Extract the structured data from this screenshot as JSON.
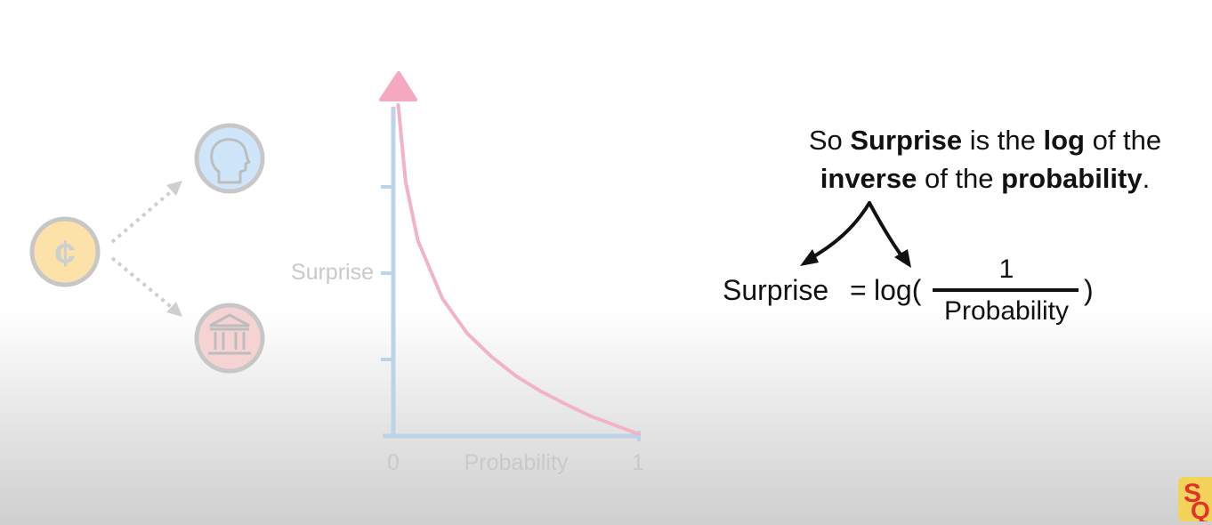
{
  "flow": {
    "source_icon": "cent-sign-icon",
    "source_glyph": "¢",
    "targets": [
      "person-head-icon",
      "bank-building-icon"
    ],
    "colors": {
      "source": "#fce2a8",
      "person": "#cfe6fa",
      "bank": "#f6d3d3",
      "ring": "#c7c7c7"
    }
  },
  "chart_data": {
    "type": "line",
    "xlabel": "Probability",
    "ylabel": "Surprise",
    "x_ticks": [
      "0",
      "1"
    ],
    "xlim": [
      0,
      1
    ],
    "function": "log(1/x)",
    "curve_points": {
      "x": [
        0.02,
        0.05,
        0.1,
        0.2,
        0.3,
        0.4,
        0.5,
        0.6,
        0.7,
        0.8,
        0.9,
        1.0
      ],
      "y": [
        3.91,
        3.0,
        2.3,
        1.61,
        1.2,
        0.92,
        0.69,
        0.51,
        0.36,
        0.22,
        0.11,
        0.0
      ]
    },
    "colors": {
      "axis": "#bcd3e8",
      "curve": "#f2b3c6",
      "arrow": "#f4a9bf"
    }
  },
  "caption": {
    "part1": "So ",
    "bold1": "Surprise",
    "part2": " is the ",
    "bold2": "log",
    "part3": " of the ",
    "bold3": "inverse",
    "part4": " of the ",
    "bold4": "probability",
    "part5": "."
  },
  "equation": {
    "lhs": "Surprise",
    "equals": "=",
    "func": "log(",
    "numerator": "1",
    "denominator": "Probability",
    "close": ")"
  },
  "logo": {
    "text1": "S",
    "text2": "Q"
  }
}
